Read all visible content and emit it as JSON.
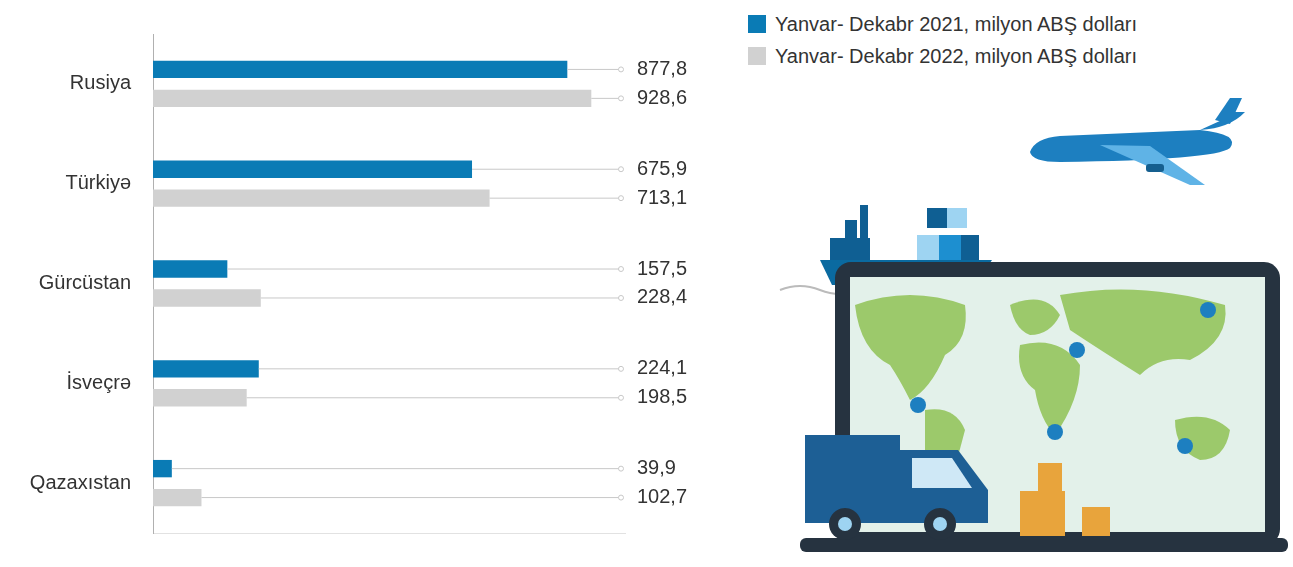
{
  "chart_data": {
    "type": "bar",
    "orientation": "horizontal",
    "categories": [
      "Rusiya",
      "Türkiyə",
      "Gürcüstan",
      "İsveçrə",
      "Qazaxıstan"
    ],
    "series": [
      {
        "name": "Yanvar- Dekabr 2021, milyon ABŞ dolları",
        "color": "#0a7bb5",
        "values": [
          877.8,
          675.9,
          157.5,
          224.1,
          39.9
        ],
        "value_labels": [
          "877,8",
          "675,9",
          "157,5",
          "224,1",
          "39,9"
        ]
      },
      {
        "name": "Yanvar- Dekabr 2022, milyon ABŞ dolları",
        "color": "#d1d1d1",
        "values": [
          928.6,
          713.1,
          228.4,
          198.5,
          102.7
        ],
        "value_labels": [
          "928,6",
          "713,1",
          "228,4",
          "198,5",
          "102,7"
        ]
      }
    ],
    "xlim": [
      0,
      1000
    ],
    "grid": false,
    "legend": "top-right",
    "data_labels": true,
    "tick_labels": "y"
  }
}
